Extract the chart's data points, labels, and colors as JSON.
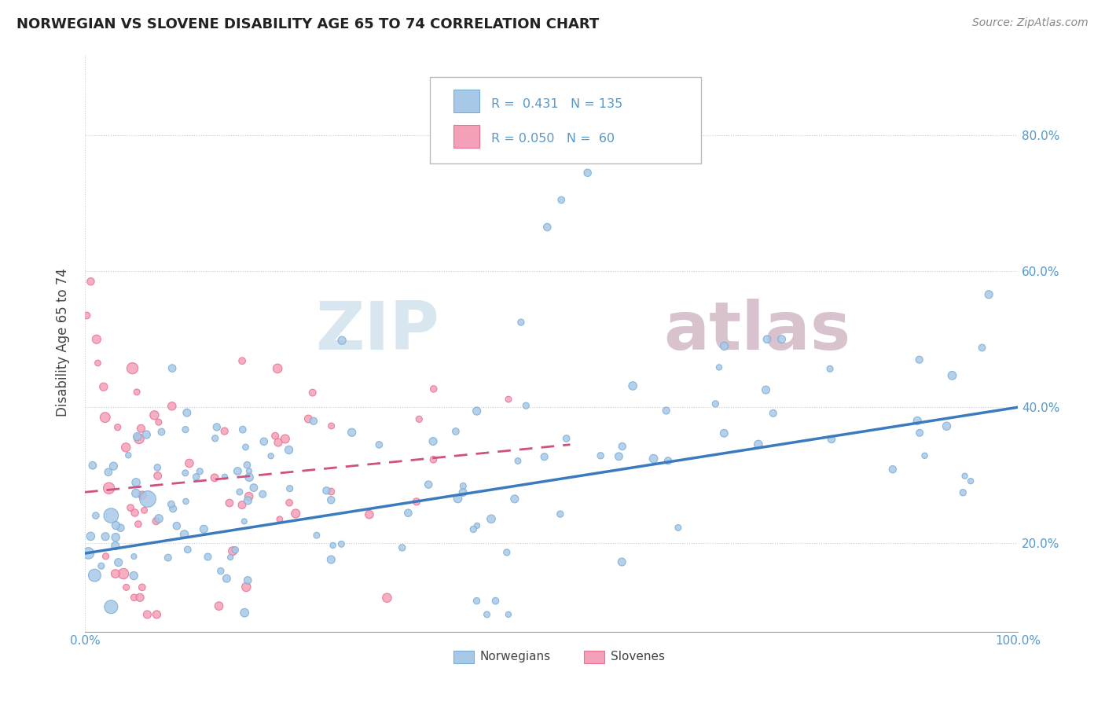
{
  "title": "NORWEGIAN VS SLOVENE DISABILITY AGE 65 TO 74 CORRELATION CHART",
  "source_text": "Source: ZipAtlas.com",
  "ylabel": "Disability Age 65 to 74",
  "xlim": [
    0.0,
    1.0
  ],
  "ylim": [
    0.07,
    0.92
  ],
  "xticks": [
    0.0,
    0.2,
    0.4,
    0.6,
    0.8,
    1.0
  ],
  "xticklabels": [
    "0.0%",
    "",
    "",
    "",
    "",
    "100.0%"
  ],
  "yticks": [
    0.2,
    0.4,
    0.6,
    0.8
  ],
  "yticklabels": [
    "20.0%",
    "40.0%",
    "60.0%",
    "80.0%"
  ],
  "norwegian_R": 0.431,
  "norwegian_N": 135,
  "slovene_R": 0.05,
  "slovene_N": 60,
  "norwegian_color": "#a8c8e8",
  "slovene_color": "#f4a0b8",
  "norwegian_edge_color": "#7aadd4",
  "slovene_edge_color": "#e87090",
  "norwegian_line_color": "#3a7abf",
  "slovene_line_color": "#d05080",
  "watermark_color": "#d8e8f0",
  "background_color": "#ffffff",
  "grid_color": "#cccccc",
  "title_color": "#222222",
  "tick_color": "#5599cc",
  "legend_border_color": "#bbbbbb",
  "nor_line_x": [
    0.0,
    1.0
  ],
  "nor_line_y": [
    0.185,
    0.4
  ],
  "slo_line_x": [
    0.0,
    0.52
  ],
  "slo_line_y": [
    0.275,
    0.345
  ]
}
